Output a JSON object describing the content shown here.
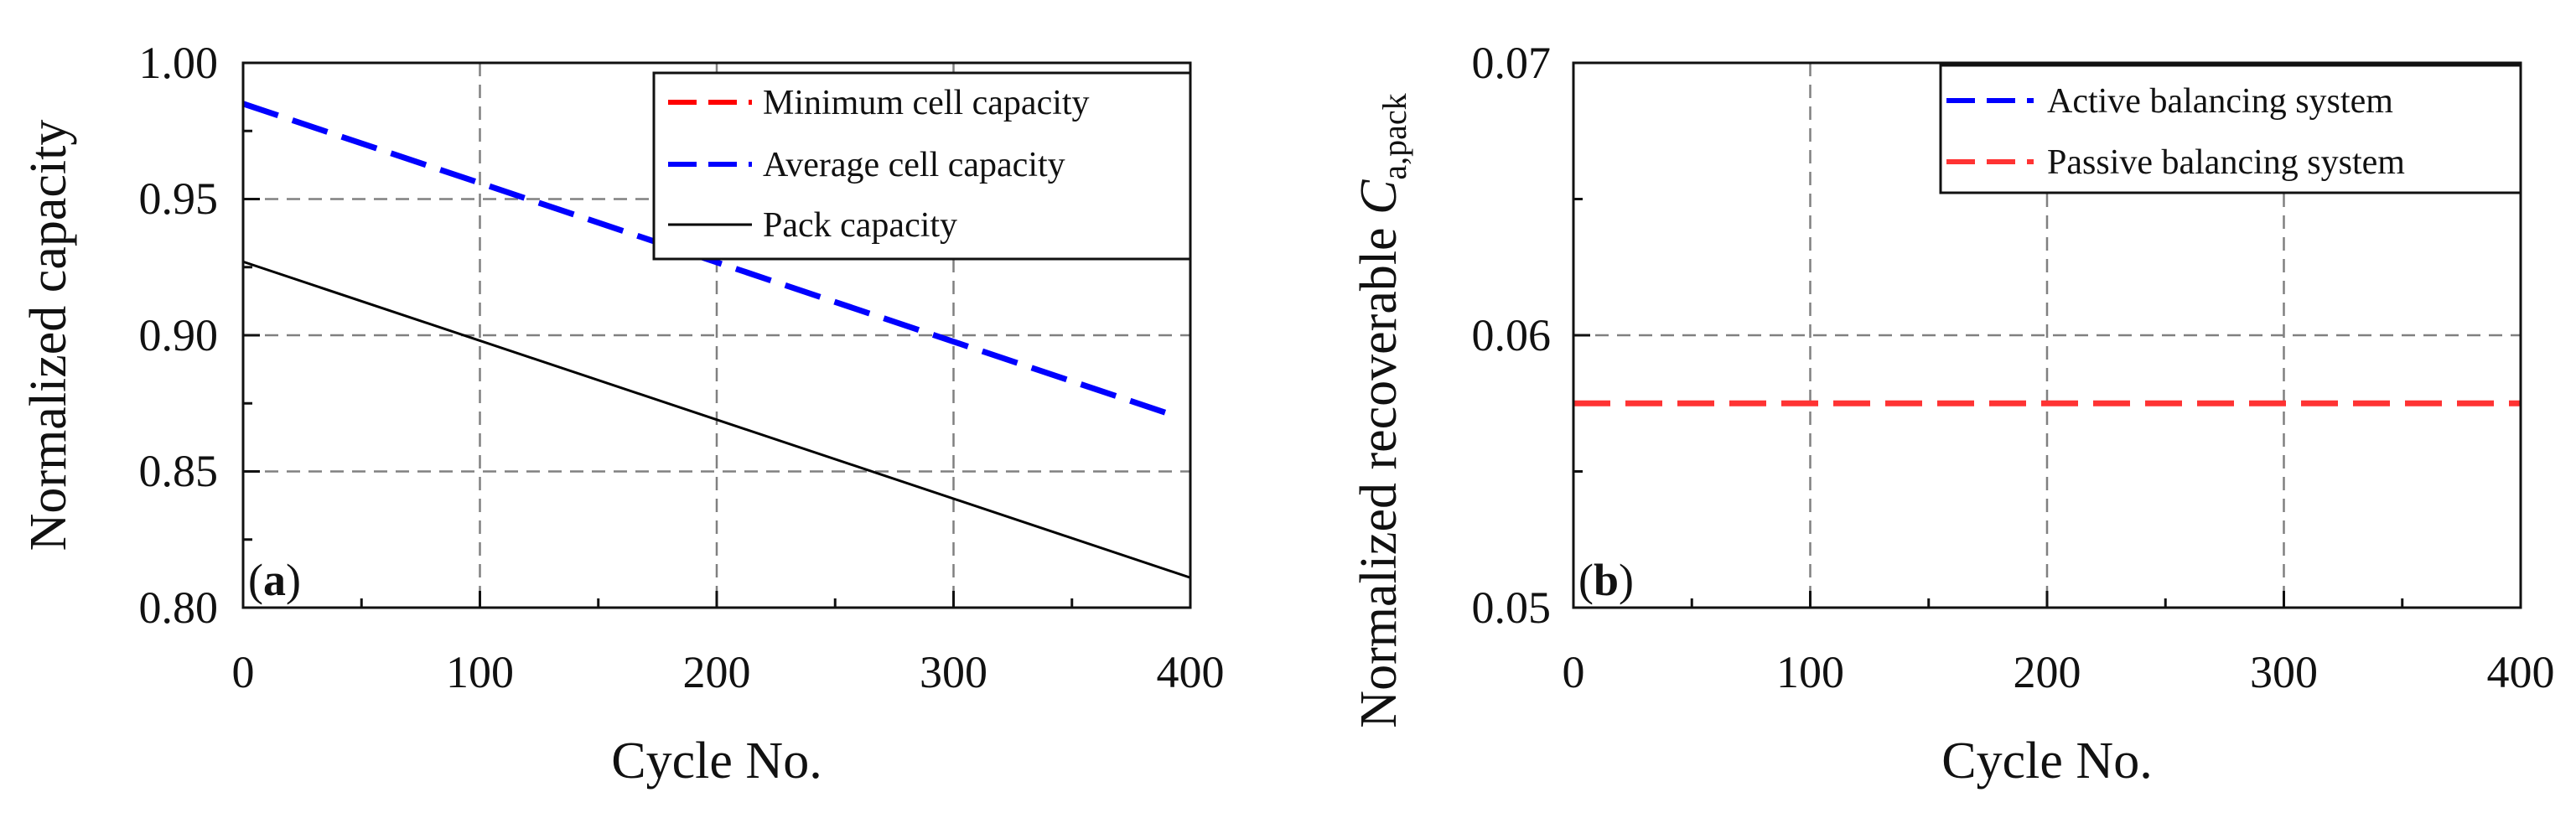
{
  "chart_data": [
    {
      "type": "line",
      "panel_label": "a",
      "xlabel": "Cycle No.",
      "ylabel": "Normalized capacity",
      "xlim": [
        0,
        400
      ],
      "ylim": [
        0.8,
        1.0
      ],
      "xticks": [
        "0",
        "100",
        "200",
        "300",
        "400"
      ],
      "yticks": [
        "0.80",
        "0.85",
        "0.90",
        "0.95",
        "1.00"
      ],
      "grid": true,
      "legend_position": "top-right",
      "series": [
        {
          "name": "Minimum cell capacity",
          "color": "#ff0000",
          "style": "dashed",
          "x": [],
          "y": []
        },
        {
          "name": "Average cell capacity",
          "color": "#0000ff",
          "style": "dashed",
          "x": [
            0,
            395
          ],
          "y": [
            0.985,
            0.87
          ]
        },
        {
          "name": "Pack capacity",
          "color": "#000000",
          "style": "solid",
          "x": [
            0,
            400
          ],
          "y": [
            0.927,
            0.811
          ]
        }
      ]
    },
    {
      "type": "line",
      "panel_label": "b",
      "xlabel": "Cycle No.",
      "ylabel_main": "Normalized recoverable ",
      "ylabel_symbol": "C",
      "ylabel_subscript": "a,pack",
      "xlim": [
        0,
        400
      ],
      "ylim": [
        0.05,
        0.07
      ],
      "xticks": [
        "0",
        "100",
        "200",
        "300",
        "400"
      ],
      "yticks": [
        "0.05",
        "0.06",
        "0.07"
      ],
      "grid": true,
      "legend_position": "top-right",
      "series": [
        {
          "name": "Active balancing system",
          "color": "#0000ff",
          "style": "dashed",
          "x": [],
          "y": []
        },
        {
          "name": "Passive balancing system",
          "color": "#ff3333",
          "style": "dashed",
          "x": [
            0,
            400
          ],
          "y": [
            0.0575,
            0.0575
          ]
        }
      ]
    }
  ]
}
